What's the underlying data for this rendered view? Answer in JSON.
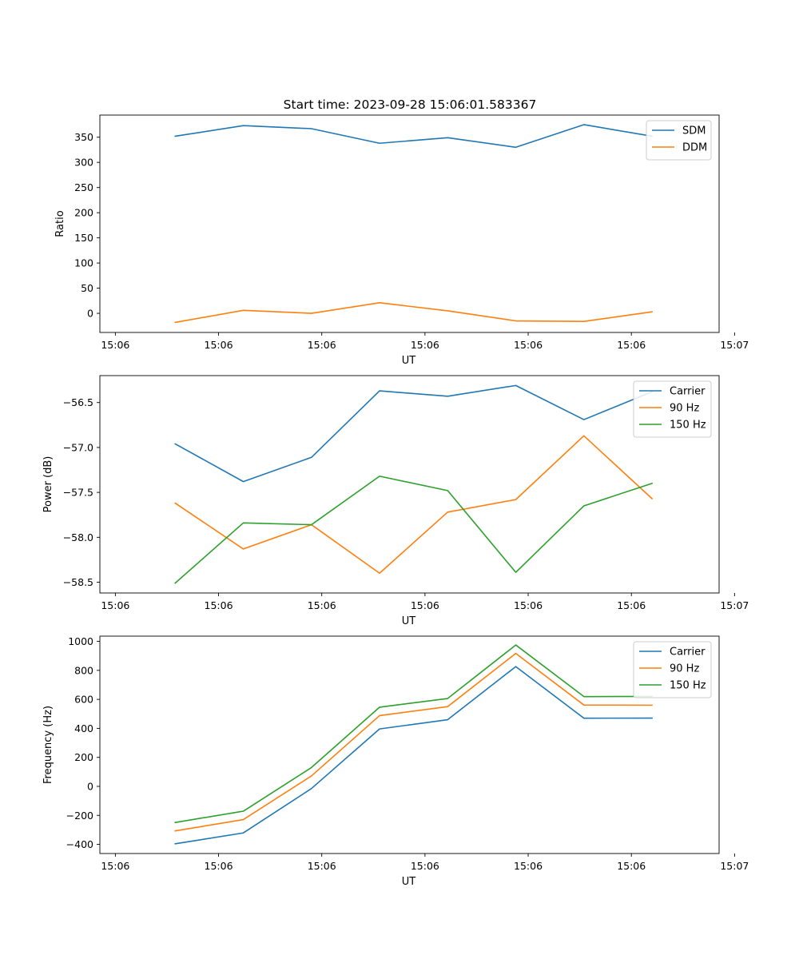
{
  "figure": {
    "title": "Start time: 2023-09-28 15:06:01.583367"
  },
  "chart_data": [
    {
      "type": "line",
      "xlabel": "UT",
      "ylabel": "Ratio",
      "x": [
        0.58,
        1.24,
        1.9,
        2.56,
        3.22,
        3.88,
        4.54,
        5.2
      ],
      "x_tick_values": [
        0,
        1,
        2,
        3,
        4,
        5,
        6
      ],
      "x_tick_labels": [
        "15:06",
        "15:06",
        "15:06",
        "15:06",
        "15:06",
        "15:06",
        "15:07"
      ],
      "xlim": [
        -0.15,
        5.85
      ],
      "ylim": [
        -38,
        394
      ],
      "y_ticks": [
        0,
        50,
        100,
        150,
        200,
        250,
        300,
        350
      ],
      "y_tick_labels": [
        "0",
        "50",
        "100",
        "150",
        "200",
        "250",
        "300",
        "350"
      ],
      "legend_position": "top-right",
      "series": [
        {
          "name": "SDM",
          "color": "#1f77b4",
          "values": [
            352,
            373,
            367,
            338,
            349,
            330,
            375,
            352
          ]
        },
        {
          "name": "DDM",
          "color": "#ff7f0e",
          "values": [
            -18,
            6,
            0,
            21,
            5,
            -15,
            -16,
            3
          ]
        }
      ]
    },
    {
      "type": "line",
      "xlabel": "UT",
      "ylabel": "Power (dB)",
      "x": [
        0.58,
        1.24,
        1.9,
        2.56,
        3.22,
        3.88,
        4.54,
        5.2
      ],
      "x_tick_values": [
        0,
        1,
        2,
        3,
        4,
        5,
        6
      ],
      "x_tick_labels": [
        "15:06",
        "15:06",
        "15:06",
        "15:06",
        "15:06",
        "15:06",
        "15:07"
      ],
      "xlim": [
        -0.15,
        5.85
      ],
      "ylim": [
        -58.62,
        -56.2
      ],
      "y_ticks": [
        -58.5,
        -58.0,
        -57.5,
        -57.0,
        -56.5
      ],
      "y_tick_labels": [
        "−58.5",
        "−58.0",
        "−57.5",
        "−57.0",
        "−56.5"
      ],
      "legend_position": "top-right",
      "series": [
        {
          "name": "Carrier",
          "color": "#1f77b4",
          "values": [
            -56.96,
            -57.38,
            -57.11,
            -56.37,
            -56.43,
            -56.31,
            -56.69,
            -56.38
          ]
        },
        {
          "name": "90 Hz",
          "color": "#ff7f0e",
          "values": [
            -57.62,
            -58.13,
            -57.86,
            -58.4,
            -57.72,
            -57.58,
            -56.87,
            -57.57
          ]
        },
        {
          "name": "150 Hz",
          "color": "#2ca02c",
          "values": [
            -58.51,
            -57.84,
            -57.86,
            -57.32,
            -57.48,
            -58.39,
            -57.65,
            -57.4
          ]
        }
      ]
    },
    {
      "type": "line",
      "xlabel": "UT",
      "ylabel": "Frequency (Hz)",
      "x": [
        0.58,
        1.24,
        1.9,
        2.56,
        3.22,
        3.88,
        4.54,
        5.2
      ],
      "x_tick_values": [
        0,
        1,
        2,
        3,
        4,
        5,
        6
      ],
      "x_tick_labels": [
        "15:06",
        "15:06",
        "15:06",
        "15:06",
        "15:06",
        "15:06",
        "15:07"
      ],
      "xlim": [
        -0.15,
        5.85
      ],
      "ylim": [
        -463,
        1036
      ],
      "y_ticks": [
        -400,
        -200,
        0,
        200,
        400,
        600,
        800,
        1000
      ],
      "y_tick_labels": [
        "−400",
        "−200",
        "0",
        "200",
        "400",
        "600",
        "800",
        "1000"
      ],
      "legend_position": "top-right",
      "series": [
        {
          "name": "Carrier",
          "color": "#1f77b4",
          "values": [
            -396,
            -321,
            -15,
            396,
            460,
            826,
            470,
            471
          ]
        },
        {
          "name": "90 Hz",
          "color": "#ff7f0e",
          "values": [
            -307,
            -229,
            72,
            488,
            550,
            917,
            561,
            560
          ]
        },
        {
          "name": "150 Hz",
          "color": "#2ca02c",
          "values": [
            -249,
            -171,
            130,
            546,
            606,
            975,
            619,
            620
          ]
        }
      ]
    }
  ]
}
